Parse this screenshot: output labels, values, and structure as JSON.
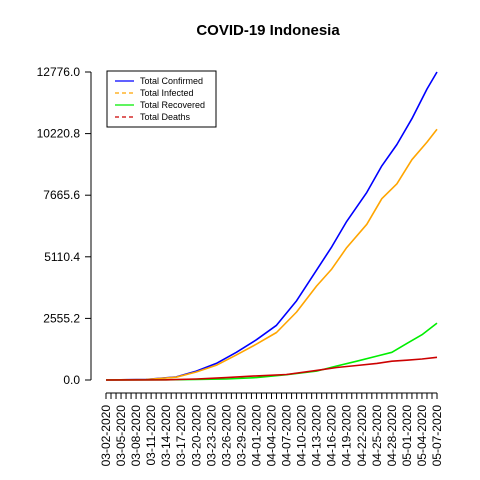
{
  "chart_data": {
    "type": "line",
    "title": "COVID-19 Indonesia",
    "xlabel": "",
    "ylabel": "",
    "ylim": [
      0,
      12776.0
    ],
    "y_ticks": [
      "0.0",
      "2555.2",
      "5110.4",
      "7665.6",
      "10220.8",
      "12776.0"
    ],
    "y_tick_values": [
      0,
      2555.2,
      5110.4,
      7665.6,
      10220.8,
      12776.0
    ],
    "x_start": "2020-03-02",
    "x_end": "2020-05-07",
    "x_tick_labels": [
      "03-02-2020",
      "03-05-2020",
      "03-08-2020",
      "03-11-2020",
      "03-14-2020",
      "03-17-2020",
      "03-20-2020",
      "03-23-2020",
      "03-26-2020",
      "03-29-2020",
      "04-01-2020",
      "04-04-2020",
      "04-07-2020",
      "04-10-2020",
      "04-13-2020",
      "04-16-2020",
      "04-19-2020",
      "04-22-2020",
      "04-25-2020",
      "04-28-2020",
      "05-01-2020",
      "05-04-2020",
      "05-07-2020"
    ],
    "legend_position": "top-left",
    "grid": false,
    "series": [
      {
        "name": "Total Confirmed",
        "color": "#0000ff",
        "line_style": "solid",
        "points": [
          [
            "2020-03-02",
            0
          ],
          [
            "2020-03-10",
            25
          ],
          [
            "2020-03-16",
            130
          ],
          [
            "2020-03-20",
            370
          ],
          [
            "2020-03-24",
            690
          ],
          [
            "2020-03-28",
            1150
          ],
          [
            "2020-04-01",
            1670
          ],
          [
            "2020-04-05",
            2270
          ],
          [
            "2020-04-09",
            3290
          ],
          [
            "2020-04-13",
            4560
          ],
          [
            "2020-04-16",
            5520
          ],
          [
            "2020-04-19",
            6580
          ],
          [
            "2020-04-23",
            7780
          ],
          [
            "2020-04-26",
            8880
          ],
          [
            "2020-04-29",
            9770
          ],
          [
            "2020-05-02",
            10840
          ],
          [
            "2020-05-05",
            12070
          ],
          [
            "2020-05-07",
            12776
          ]
        ]
      },
      {
        "name": "Total Infected",
        "color": "#ffa500",
        "line_style": "dashed",
        "points": [
          [
            "2020-03-02",
            0
          ],
          [
            "2020-03-10",
            20
          ],
          [
            "2020-03-16",
            115
          ],
          [
            "2020-03-20",
            330
          ],
          [
            "2020-03-24",
            610
          ],
          [
            "2020-03-28",
            1040
          ],
          [
            "2020-04-01",
            1490
          ],
          [
            "2020-04-05",
            1970
          ],
          [
            "2020-04-09",
            2820
          ],
          [
            "2020-04-13",
            3900
          ],
          [
            "2020-04-16",
            4600
          ],
          [
            "2020-04-19",
            5490
          ],
          [
            "2020-04-23",
            6460
          ],
          [
            "2020-04-26",
            7520
          ],
          [
            "2020-04-29",
            8140
          ],
          [
            "2020-05-02",
            9140
          ],
          [
            "2020-05-05",
            9870
          ],
          [
            "2020-05-07",
            10400
          ]
        ]
      },
      {
        "name": "Total Recovered",
        "color": "#00ee00",
        "line_style": "solid",
        "points": [
          [
            "2020-03-02",
            0
          ],
          [
            "2020-03-14",
            8
          ],
          [
            "2020-03-20",
            20
          ],
          [
            "2020-03-26",
            40
          ],
          [
            "2020-04-01",
            100
          ],
          [
            "2020-04-07",
            220
          ],
          [
            "2020-04-13",
            370
          ],
          [
            "2020-04-17",
            580
          ],
          [
            "2020-04-21",
            780
          ],
          [
            "2020-04-25",
            990
          ],
          [
            "2020-04-28",
            1150
          ],
          [
            "2020-05-01",
            1520
          ],
          [
            "2020-05-04",
            1880
          ],
          [
            "2020-05-07",
            2360
          ]
        ]
      },
      {
        "name": "Total Deaths",
        "color": "#cc0000",
        "line_style": "dashed",
        "points": [
          [
            "2020-03-02",
            0
          ],
          [
            "2020-03-14",
            10
          ],
          [
            "2020-03-20",
            40
          ],
          [
            "2020-03-26",
            100
          ],
          [
            "2020-04-01",
            170
          ],
          [
            "2020-04-07",
            230
          ],
          [
            "2020-04-13",
            400
          ],
          [
            "2020-04-17",
            520
          ],
          [
            "2020-04-21",
            600
          ],
          [
            "2020-04-25",
            690
          ],
          [
            "2020-04-28",
            780
          ],
          [
            "2020-05-01",
            820
          ],
          [
            "2020-05-04",
            870
          ],
          [
            "2020-05-07",
            940
          ]
        ]
      }
    ]
  }
}
